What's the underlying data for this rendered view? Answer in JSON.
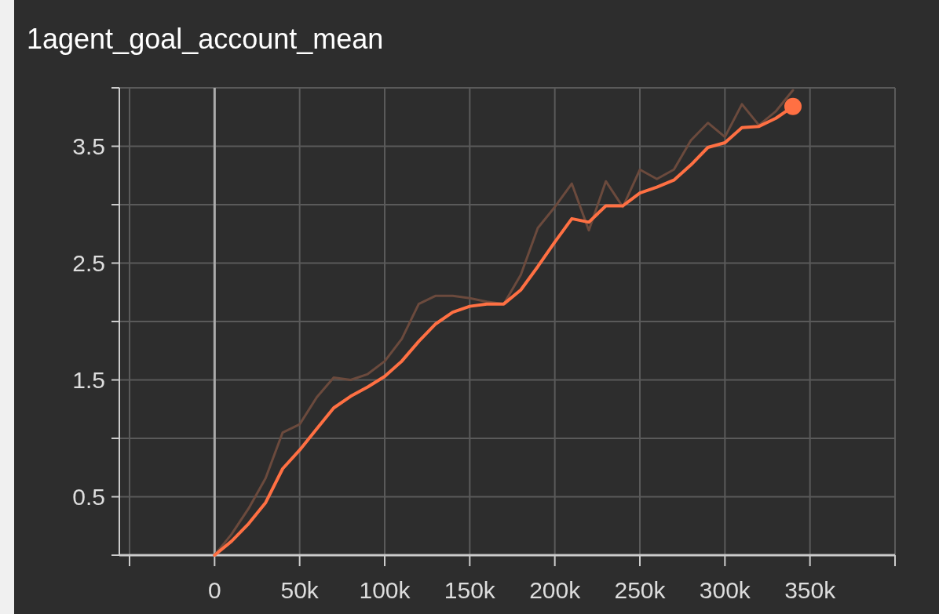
{
  "chart_data": {
    "type": "line",
    "title": "1agent_goal_account_mean",
    "x": [
      0,
      10000,
      20000,
      30000,
      40000,
      50000,
      60000,
      70000,
      80000,
      90000,
      100000,
      110000,
      120000,
      130000,
      140000,
      150000,
      160000,
      170000,
      180000,
      190000,
      200000,
      210000,
      220000,
      230000,
      240000,
      250000,
      260000,
      270000,
      280000,
      290000,
      300000,
      310000,
      320000,
      330000,
      340000
    ],
    "series": [
      {
        "color": "#6b4a3d",
        "values": [
          0,
          0.18,
          0.4,
          0.66,
          1.05,
          1.12,
          1.35,
          1.52,
          1.5,
          1.55,
          1.66,
          1.85,
          2.15,
          2.22,
          2.22,
          2.2,
          2.17,
          2.15,
          2.4,
          2.8,
          2.98,
          3.18,
          2.78,
          3.2,
          2.98,
          3.3,
          3.22,
          3.3,
          3.55,
          3.7,
          3.58,
          3.86,
          3.68,
          3.8,
          3.98
        ]
      },
      {
        "color": "#ff7043",
        "values": [
          0,
          0.12,
          0.27,
          0.45,
          0.74,
          0.9,
          1.08,
          1.26,
          1.36,
          1.44,
          1.53,
          1.66,
          1.83,
          1.98,
          2.08,
          2.13,
          2.15,
          2.15,
          2.27,
          2.47,
          2.68,
          2.88,
          2.85,
          2.99,
          2.99,
          3.1,
          3.15,
          3.21,
          3.34,
          3.49,
          3.53,
          3.66,
          3.67,
          3.74,
          3.84
        ]
      },
      {
        "type": "scatter",
        "color": "#ff7043",
        "x": [
          340000
        ],
        "values": [
          3.84
        ],
        "marker": "circle"
      }
    ],
    "xlim": [
      -56000,
      400000
    ],
    "xticks": [
      {
        "value": -50000,
        "label": null
      },
      {
        "value": 0,
        "label": "0"
      },
      {
        "value": 50000,
        "label": "50k"
      },
      {
        "value": 100000,
        "label": "100k"
      },
      {
        "value": 150000,
        "label": "150k"
      },
      {
        "value": 200000,
        "label": "200k"
      },
      {
        "value": 250000,
        "label": "250k"
      },
      {
        "value": 300000,
        "label": "300k"
      },
      {
        "value": 350000,
        "label": "350k"
      },
      {
        "value": 400000,
        "label": null
      }
    ],
    "ylim": [
      0,
      4
    ],
    "yticks": [
      {
        "value": 0,
        "label": null
      },
      0.5,
      {
        "value": 1,
        "label": null
      },
      1.5,
      {
        "value": 2,
        "label": null
      },
      2.5,
      {
        "value": 3,
        "label": null
      },
      3.5,
      {
        "value": 4,
        "label": null
      }
    ],
    "grid": true
  }
}
